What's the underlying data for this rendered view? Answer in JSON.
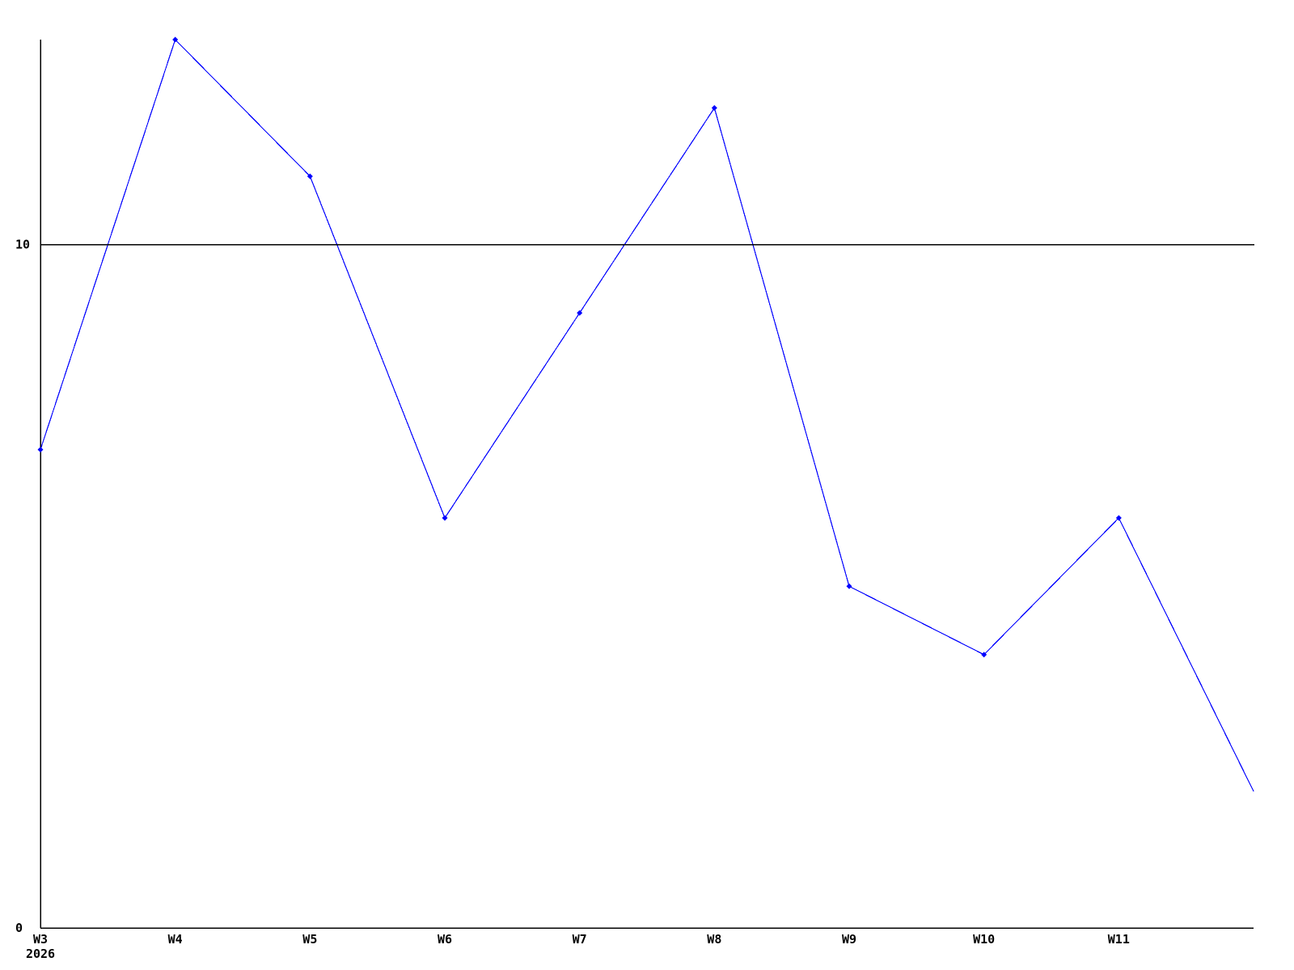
{
  "chart_data": {
    "type": "line",
    "title": "",
    "xlabel": "",
    "ylabel": "",
    "x_tick_labels": [
      "W3",
      "W4",
      "W5",
      "W6",
      "W7",
      "W8",
      "W9",
      "W10",
      "W11"
    ],
    "year_label": "2026",
    "values": [
      7,
      13,
      11,
      6,
      9,
      12,
      5,
      4,
      6,
      2
    ],
    "y_ticks": [
      {
        "label": "10",
        "value": 10
      },
      {
        "label": "0",
        "value": 0
      }
    ],
    "ylim": [
      0,
      13
    ],
    "gridline_at_value": 10,
    "grid": "single-horizontal-line",
    "legend_position": "none",
    "marker": "diamond",
    "colors": {
      "line": "#0000ff",
      "marker": "#0000ff",
      "axis": "#000000",
      "gridline": "#000000",
      "background": "#ffffff",
      "tick_text": "#000000"
    }
  }
}
